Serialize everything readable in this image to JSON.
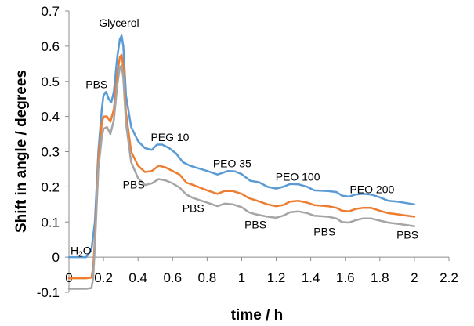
{
  "chart_data": {
    "type": "line",
    "xlabel": "time / h",
    "ylabel": "Shift in angle / degrees",
    "xlim": [
      0,
      2.2
    ],
    "ylim": [
      -0.1,
      0.7
    ],
    "x_ticks": [
      "0",
      "0.2",
      "0.4",
      "0.6",
      "0.8",
      "1",
      "1.2",
      "1.4",
      "1.6",
      "1.8",
      "2",
      "2.2"
    ],
    "y_ticks": [
      "-0.1",
      "0",
      "0.1",
      "0.2",
      "0.3",
      "0.4",
      "0.5",
      "0.6",
      "0.7"
    ],
    "grid": false,
    "legend": "none",
    "colors": [
      "#5b9bd5",
      "#ed7d31",
      "#a5a5a5"
    ],
    "series": [
      {
        "color": "#5b9bd5",
        "points": [
          [
            0.0,
            0.0
          ],
          [
            0.1,
            0.0
          ],
          [
            0.13,
            0.02
          ],
          [
            0.14,
            0.06
          ],
          [
            0.15,
            0.1
          ],
          [
            0.17,
            0.3
          ],
          [
            0.19,
            0.42
          ],
          [
            0.2,
            0.46
          ],
          [
            0.215,
            0.47
          ],
          [
            0.23,
            0.45
          ],
          [
            0.245,
            0.44
          ],
          [
            0.26,
            0.47
          ],
          [
            0.28,
            0.57
          ],
          [
            0.295,
            0.62
          ],
          [
            0.305,
            0.63
          ],
          [
            0.315,
            0.6
          ],
          [
            0.33,
            0.46
          ],
          [
            0.36,
            0.37
          ],
          [
            0.4,
            0.33
          ],
          [
            0.44,
            0.31
          ],
          [
            0.48,
            0.305
          ],
          [
            0.51,
            0.32
          ],
          [
            0.54,
            0.32
          ],
          [
            0.58,
            0.31
          ],
          [
            0.62,
            0.295
          ],
          [
            0.66,
            0.27
          ],
          [
            0.7,
            0.26
          ],
          [
            0.8,
            0.245
          ],
          [
            0.86,
            0.235
          ],
          [
            0.88,
            0.238
          ],
          [
            0.92,
            0.245
          ],
          [
            0.96,
            0.244
          ],
          [
            1.0,
            0.236
          ],
          [
            1.05,
            0.217
          ],
          [
            1.1,
            0.213
          ],
          [
            1.15,
            0.2
          ],
          [
            1.2,
            0.195
          ],
          [
            1.24,
            0.2
          ],
          [
            1.28,
            0.208
          ],
          [
            1.33,
            0.207
          ],
          [
            1.38,
            0.2
          ],
          [
            1.42,
            0.19
          ],
          [
            1.5,
            0.188
          ],
          [
            1.55,
            0.185
          ],
          [
            1.58,
            0.175
          ],
          [
            1.62,
            0.172
          ],
          [
            1.66,
            0.178
          ],
          [
            1.7,
            0.18
          ],
          [
            1.75,
            0.178
          ],
          [
            1.8,
            0.17
          ],
          [
            1.85,
            0.16
          ],
          [
            1.9,
            0.158
          ],
          [
            2.0,
            0.15
          ]
        ]
      },
      {
        "color": "#ed7d31",
        "points": [
          [
            0.0,
            -0.06
          ],
          [
            0.1,
            -0.06
          ],
          [
            0.13,
            -0.058
          ],
          [
            0.14,
            -0.03
          ],
          [
            0.15,
            0.05
          ],
          [
            0.17,
            0.28
          ],
          [
            0.19,
            0.38
          ],
          [
            0.2,
            0.4
          ],
          [
            0.22,
            0.4
          ],
          [
            0.24,
            0.385
          ],
          [
            0.26,
            0.42
          ],
          [
            0.28,
            0.52
          ],
          [
            0.295,
            0.57
          ],
          [
            0.305,
            0.575
          ],
          [
            0.315,
            0.54
          ],
          [
            0.33,
            0.41
          ],
          [
            0.36,
            0.3
          ],
          [
            0.4,
            0.26
          ],
          [
            0.44,
            0.242
          ],
          [
            0.48,
            0.245
          ],
          [
            0.52,
            0.26
          ],
          [
            0.56,
            0.255
          ],
          [
            0.6,
            0.245
          ],
          [
            0.64,
            0.235
          ],
          [
            0.68,
            0.212
          ],
          [
            0.72,
            0.205
          ],
          [
            0.8,
            0.19
          ],
          [
            0.86,
            0.18
          ],
          [
            0.9,
            0.188
          ],
          [
            0.95,
            0.188
          ],
          [
            1.0,
            0.18
          ],
          [
            1.04,
            0.168
          ],
          [
            1.08,
            0.162
          ],
          [
            1.15,
            0.15
          ],
          [
            1.2,
            0.145
          ],
          [
            1.24,
            0.148
          ],
          [
            1.28,
            0.158
          ],
          [
            1.33,
            0.16
          ],
          [
            1.38,
            0.155
          ],
          [
            1.42,
            0.148
          ],
          [
            1.5,
            0.145
          ],
          [
            1.55,
            0.14
          ],
          [
            1.58,
            0.132
          ],
          [
            1.62,
            0.13
          ],
          [
            1.66,
            0.137
          ],
          [
            1.7,
            0.14
          ],
          [
            1.75,
            0.14
          ],
          [
            1.8,
            0.132
          ],
          [
            1.85,
            0.125
          ],
          [
            1.9,
            0.122
          ],
          [
            2.0,
            0.115
          ]
        ]
      },
      {
        "color": "#a5a5a5",
        "points": [
          [
            0.0,
            -0.09
          ],
          [
            0.1,
            -0.09
          ],
          [
            0.13,
            -0.088
          ],
          [
            0.14,
            -0.06
          ],
          [
            0.15,
            0.03
          ],
          [
            0.17,
            0.25
          ],
          [
            0.19,
            0.34
          ],
          [
            0.2,
            0.365
          ],
          [
            0.22,
            0.37
          ],
          [
            0.24,
            0.35
          ],
          [
            0.26,
            0.39
          ],
          [
            0.28,
            0.49
          ],
          [
            0.295,
            0.54
          ],
          [
            0.305,
            0.545
          ],
          [
            0.315,
            0.51
          ],
          [
            0.33,
            0.38
          ],
          [
            0.36,
            0.27
          ],
          [
            0.4,
            0.225
          ],
          [
            0.44,
            0.205
          ],
          [
            0.48,
            0.21
          ],
          [
            0.52,
            0.222
          ],
          [
            0.56,
            0.218
          ],
          [
            0.6,
            0.21
          ],
          [
            0.64,
            0.198
          ],
          [
            0.68,
            0.178
          ],
          [
            0.72,
            0.168
          ],
          [
            0.8,
            0.155
          ],
          [
            0.86,
            0.145
          ],
          [
            0.9,
            0.152
          ],
          [
            0.95,
            0.15
          ],
          [
            1.0,
            0.142
          ],
          [
            1.04,
            0.128
          ],
          [
            1.08,
            0.122
          ],
          [
            1.15,
            0.115
          ],
          [
            1.2,
            0.112
          ],
          [
            1.24,
            0.118
          ],
          [
            1.28,
            0.128
          ],
          [
            1.33,
            0.13
          ],
          [
            1.38,
            0.125
          ],
          [
            1.42,
            0.118
          ],
          [
            1.5,
            0.115
          ],
          [
            1.55,
            0.11
          ],
          [
            1.58,
            0.1
          ],
          [
            1.62,
            0.098
          ],
          [
            1.66,
            0.105
          ],
          [
            1.7,
            0.11
          ],
          [
            1.75,
            0.11
          ],
          [
            1.8,
            0.104
          ],
          [
            1.85,
            0.098
          ],
          [
            1.9,
            0.095
          ],
          [
            2.0,
            0.088
          ]
        ]
      }
    ],
    "annotations": [
      {
        "text": "Glycerol",
        "x": 0.29,
        "y": 0.655
      },
      {
        "text": "PBS",
        "x": 0.16,
        "y": 0.48
      },
      {
        "text": "PEG 10",
        "x": 0.585,
        "y": 0.33
      },
      {
        "text": "PEO 35",
        "x": 0.945,
        "y": 0.255
      },
      {
        "text": "PEO 100",
        "x": 1.325,
        "y": 0.217
      },
      {
        "text": "PEO 200",
        "x": 1.755,
        "y": 0.182
      },
      {
        "text": "PBS",
        "x": 0.375,
        "y": 0.195
      },
      {
        "text": "PBS",
        "x": 0.72,
        "y": 0.128
      },
      {
        "text": "PBS",
        "x": 1.08,
        "y": 0.082
      },
      {
        "text": "PBS",
        "x": 1.48,
        "y": 0.062
      },
      {
        "text": "PBS",
        "x": 1.96,
        "y": 0.053
      }
    ],
    "h2o_label": {
      "main": "H",
      "sub": "2",
      "end": "O",
      "x": 0.0,
      "y": 0.008
    }
  }
}
